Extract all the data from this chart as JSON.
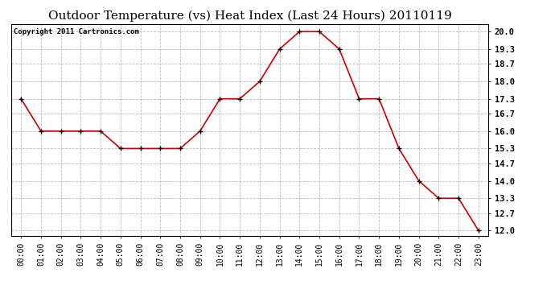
{
  "title": "Outdoor Temperature (vs) Heat Index (Last 24 Hours) 20110119",
  "copyright": "Copyright 2011 Cartronics.com",
  "x_labels": [
    "00:00",
    "01:00",
    "02:00",
    "03:00",
    "04:00",
    "05:00",
    "06:00",
    "07:00",
    "08:00",
    "09:00",
    "10:00",
    "11:00",
    "12:00",
    "13:00",
    "14:00",
    "15:00",
    "16:00",
    "17:00",
    "18:00",
    "19:00",
    "20:00",
    "21:00",
    "22:00",
    "23:00"
  ],
  "y_values": [
    17.3,
    16.0,
    16.0,
    16.0,
    16.0,
    15.3,
    15.3,
    15.3,
    15.3,
    16.0,
    17.3,
    17.3,
    18.0,
    19.3,
    20.0,
    20.0,
    19.3,
    17.3,
    17.3,
    15.3,
    14.0,
    13.3,
    13.3,
    12.0
  ],
  "yticks": [
    12.0,
    12.7,
    13.3,
    14.0,
    14.7,
    15.3,
    16.0,
    16.7,
    17.3,
    18.0,
    18.7,
    19.3,
    20.0
  ],
  "ylim": [
    11.8,
    20.3
  ],
  "line_color": "#cc0000",
  "marker": "+",
  "marker_color": "#000000",
  "bg_color": "#ffffff",
  "grid_color": "#bbbbbb",
  "title_fontsize": 11,
  "copyright_fontsize": 6.5,
  "tick_fontsize": 7,
  "ytick_fontsize": 7.5
}
